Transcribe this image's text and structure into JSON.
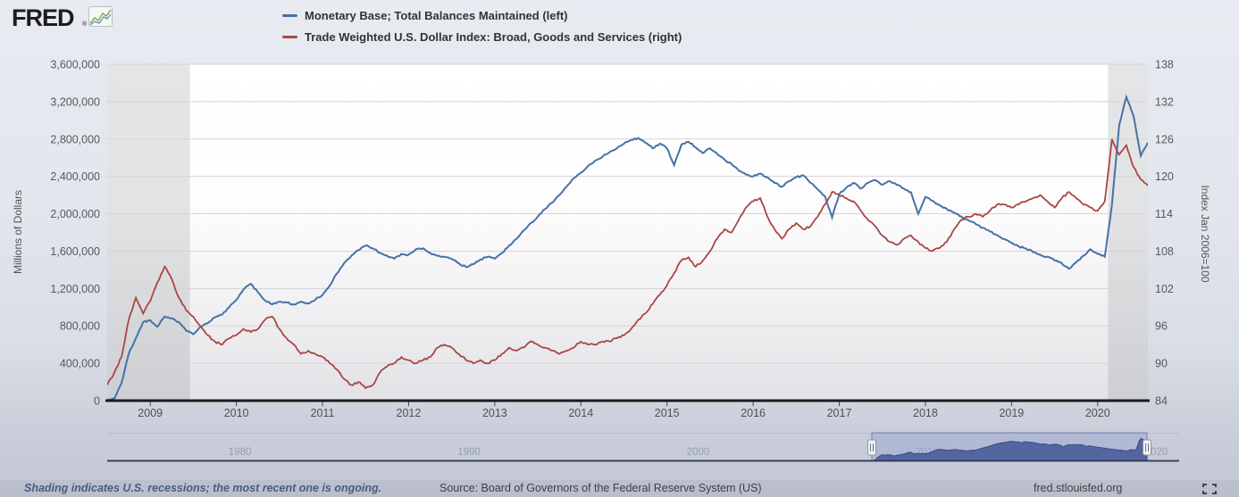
{
  "header": {
    "logo_text": "FRED",
    "legend": [
      {
        "label": "Monetary Base; Total Balances Maintained (left)",
        "color": "#4572a7"
      },
      {
        "label": "Trade Weighted U.S. Dollar Index: Broad, Goods and Services (right)",
        "color": "#aa4643"
      }
    ]
  },
  "footer": {
    "recession_note": "Shading indicates U.S. recessions; the most recent one is ongoing.",
    "source": "Source: Board of Governors of the Federal Reserve System (US)",
    "site": "fred.stlouisfed.org"
  },
  "chart_data": {
    "type": "line",
    "left_axis": {
      "title": "Millions of Dollars",
      "ticks": [
        "3,600,000",
        "3,200,000",
        "2,800,000",
        "2,400,000",
        "2,000,000",
        "1,600,000",
        "1,200,000",
        "800,000",
        "400,000",
        "0"
      ],
      "range": [
        0,
        3600000
      ]
    },
    "right_axis": {
      "title": "Index Jan 2006=100",
      "ticks": [
        "138",
        "132",
        "126",
        "120",
        "114",
        "108",
        "102",
        "96",
        "90",
        "84"
      ],
      "range": [
        84,
        138
      ]
    },
    "x_axis": {
      "ticks": [
        2009,
        2010,
        2011,
        2012,
        2013,
        2014,
        2015,
        2016,
        2017,
        2018,
        2019,
        2020
      ]
    },
    "x_range": [
      2008.5,
      2020.5833
    ],
    "grid": true,
    "recession_bands": [
      [
        2008.5,
        2009.46
      ],
      [
        2020.12,
        2020.5833
      ]
    ],
    "series": [
      {
        "name": "Monetary Base; Total Balances Maintained",
        "axis": "left",
        "color": "#4572a7",
        "x_start": 2008.5,
        "x_step_years": 0.0833333,
        "values": [
          12000,
          20000,
          190000,
          500000,
          670000,
          840000,
          860000,
          790000,
          900000,
          880000,
          840000,
          750000,
          710000,
          790000,
          830000,
          890000,
          920000,
          1000000,
          1080000,
          1190000,
          1250000,
          1160000,
          1070000,
          1030000,
          1060000,
          1050000,
          1030000,
          1060000,
          1040000,
          1080000,
          1130000,
          1230000,
          1360000,
          1470000,
          1550000,
          1610000,
          1660000,
          1630000,
          1580000,
          1550000,
          1520000,
          1570000,
          1560000,
          1620000,
          1630000,
          1580000,
          1550000,
          1540000,
          1520000,
          1470000,
          1430000,
          1460000,
          1510000,
          1540000,
          1520000,
          1580000,
          1660000,
          1730000,
          1820000,
          1900000,
          1970000,
          2050000,
          2120000,
          2200000,
          2290000,
          2380000,
          2440000,
          2510000,
          2570000,
          2610000,
          2660000,
          2700000,
          2750000,
          2790000,
          2810000,
          2760000,
          2700000,
          2750000,
          2700000,
          2520000,
          2740000,
          2770000,
          2710000,
          2650000,
          2700000,
          2640000,
          2580000,
          2530000,
          2460000,
          2420000,
          2400000,
          2430000,
          2390000,
          2330000,
          2290000,
          2350000,
          2390000,
          2410000,
          2330000,
          2260000,
          2190000,
          1960000,
          2210000,
          2280000,
          2330000,
          2270000,
          2330000,
          2360000,
          2310000,
          2350000,
          2310000,
          2270000,
          2230000,
          2000000,
          2180000,
          2140000,
          2090000,
          2050000,
          2010000,
          1970000,
          1930000,
          1890000,
          1850000,
          1810000,
          1770000,
          1730000,
          1690000,
          1650000,
          1630000,
          1590000,
          1560000,
          1540000,
          1500000,
          1470000,
          1410000,
          1480000,
          1550000,
          1620000,
          1570000,
          1540000,
          2100000,
          2950000,
          3250000,
          3050000,
          2620000,
          2760000
        ]
      },
      {
        "name": "Trade Weighted U.S. Dollar Index: Broad, Goods and Services",
        "axis": "right",
        "color": "#aa4643",
        "x_start": 2008.5,
        "x_step_years": 0.0833333,
        "values": [
          86.5,
          88.5,
          91,
          97,
          100.5,
          98,
          100,
          103,
          105.5,
          103.5,
          100.5,
          98.5,
          97.5,
          96,
          94.5,
          93.5,
          93,
          94,
          94.5,
          95.5,
          95,
          95.5,
          97,
          97.5,
          95.5,
          94,
          93,
          91.5,
          92,
          91.5,
          91,
          90,
          89,
          87.5,
          86.5,
          87,
          86,
          86.5,
          88.5,
          89.5,
          90,
          91,
          90.5,
          90,
          90.5,
          91,
          92.5,
          93,
          92.5,
          91.5,
          90.5,
          90,
          90.5,
          90,
          90.5,
          91.5,
          92.5,
          92,
          92.5,
          93.5,
          93,
          92.5,
          92,
          91.5,
          92,
          92.5,
          93.5,
          93,
          93,
          93.5,
          93.5,
          94,
          94.5,
          95.5,
          97,
          98,
          99.5,
          101,
          102.5,
          104.5,
          106.5,
          107,
          105.5,
          106.5,
          108,
          110,
          111.5,
          111,
          113,
          115,
          116,
          116.5,
          113.5,
          111.5,
          110,
          111.5,
          112.5,
          111.5,
          112,
          113.5,
          115.5,
          117.5,
          117,
          116.5,
          116,
          114.5,
          113,
          112,
          110.5,
          109.5,
          109,
          110,
          110.5,
          109.5,
          108.5,
          108,
          108.5,
          109.5,
          111.5,
          113,
          113.5,
          114,
          113.5,
          114.5,
          115.5,
          115.5,
          115,
          115.5,
          116,
          116.5,
          117,
          116,
          115,
          116.5,
          117.5,
          116.5,
          115.5,
          115,
          114.5,
          116,
          126,
          123.5,
          125,
          121.5,
          119.5,
          118.5
        ]
      }
    ],
    "navigator": {
      "ticks": [
        "1980",
        "1990",
        "2000",
        "2010",
        "2020"
      ],
      "tick_years": [
        1980,
        1990,
        2000,
        2010,
        2020
      ],
      "x_range": [
        1974.2,
        2021.0
      ],
      "selection_years": [
        2008.5,
        2020.5833
      ],
      "prefix_series": [
        [
          1974.2,
          10000
        ],
        [
          1985,
          14000
        ],
        [
          1995,
          18000
        ],
        [
          2004,
          14000
        ],
        [
          2008.42,
          12000
        ]
      ]
    }
  }
}
